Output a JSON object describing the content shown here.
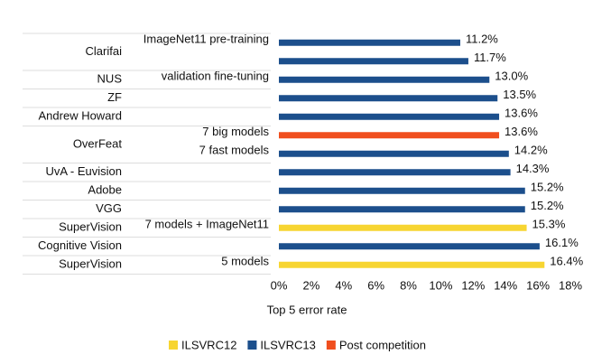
{
  "chart_data": {
    "type": "bar",
    "orientation": "horizontal",
    "categories": [
      "Clarifai",
      null,
      "NUS",
      "ZF",
      "Andrew Howard",
      "OverFeat",
      null,
      "UvA - Euvision",
      "Adobe",
      "VGG",
      "SuperVision",
      "Cognitive Vision",
      "SuperVision"
    ],
    "sublabels": [
      "ImageNet11 pre-training",
      null,
      "validation fine-tuning",
      null,
      null,
      "7 big models",
      "7 fast models",
      null,
      null,
      null,
      "7 models + ImageNet11",
      null,
      "5 models"
    ],
    "series": [
      {
        "name": "ILSVRC12",
        "color": "#f7d531",
        "values": [
          null,
          null,
          null,
          null,
          null,
          null,
          null,
          null,
          null,
          null,
          15.3,
          null,
          16.4
        ],
        "value_labels": [
          null,
          null,
          null,
          null,
          null,
          null,
          null,
          null,
          null,
          null,
          "15.3%",
          null,
          "16.4%"
        ]
      },
      {
        "name": "ILSVRC13",
        "color": "#1c4f8c",
        "values": [
          11.2,
          11.7,
          13.0,
          13.5,
          13.6,
          null,
          14.2,
          14.3,
          15.2,
          15.2,
          null,
          16.1,
          null
        ],
        "value_labels": [
          "11.2%",
          "11.7%",
          "13.0%",
          "13.5%",
          "13.6%",
          null,
          "14.2%",
          "14.3%",
          "15.2%",
          "15.2%",
          null,
          "16.1%",
          null
        ]
      },
      {
        "name": "Post competition",
        "color": "#f04e1e",
        "values": [
          null,
          null,
          null,
          null,
          null,
          13.6,
          null,
          null,
          null,
          null,
          null,
          null,
          null
        ],
        "value_labels": [
          null,
          null,
          null,
          null,
          null,
          "13.6%",
          null,
          null,
          null,
          null,
          null,
          null,
          null
        ]
      }
    ],
    "xlabel": "Top 5 error rate",
    "xlim": [
      0,
      18
    ],
    "xticks": [
      {
        "value": 0,
        "label": "0%"
      },
      {
        "value": 2,
        "label": "2%"
      },
      {
        "value": 4,
        "label": "4%"
      },
      {
        "value": 6,
        "label": "6%"
      },
      {
        "value": 8,
        "label": "8%"
      },
      {
        "value": 10,
        "label": "10%"
      },
      {
        "value": 12,
        "label": "12%"
      },
      {
        "value": 14,
        "label": "14%"
      },
      {
        "value": 16,
        "label": "16%"
      },
      {
        "value": 18,
        "label": "18%"
      }
    ],
    "legend": "bottom"
  }
}
